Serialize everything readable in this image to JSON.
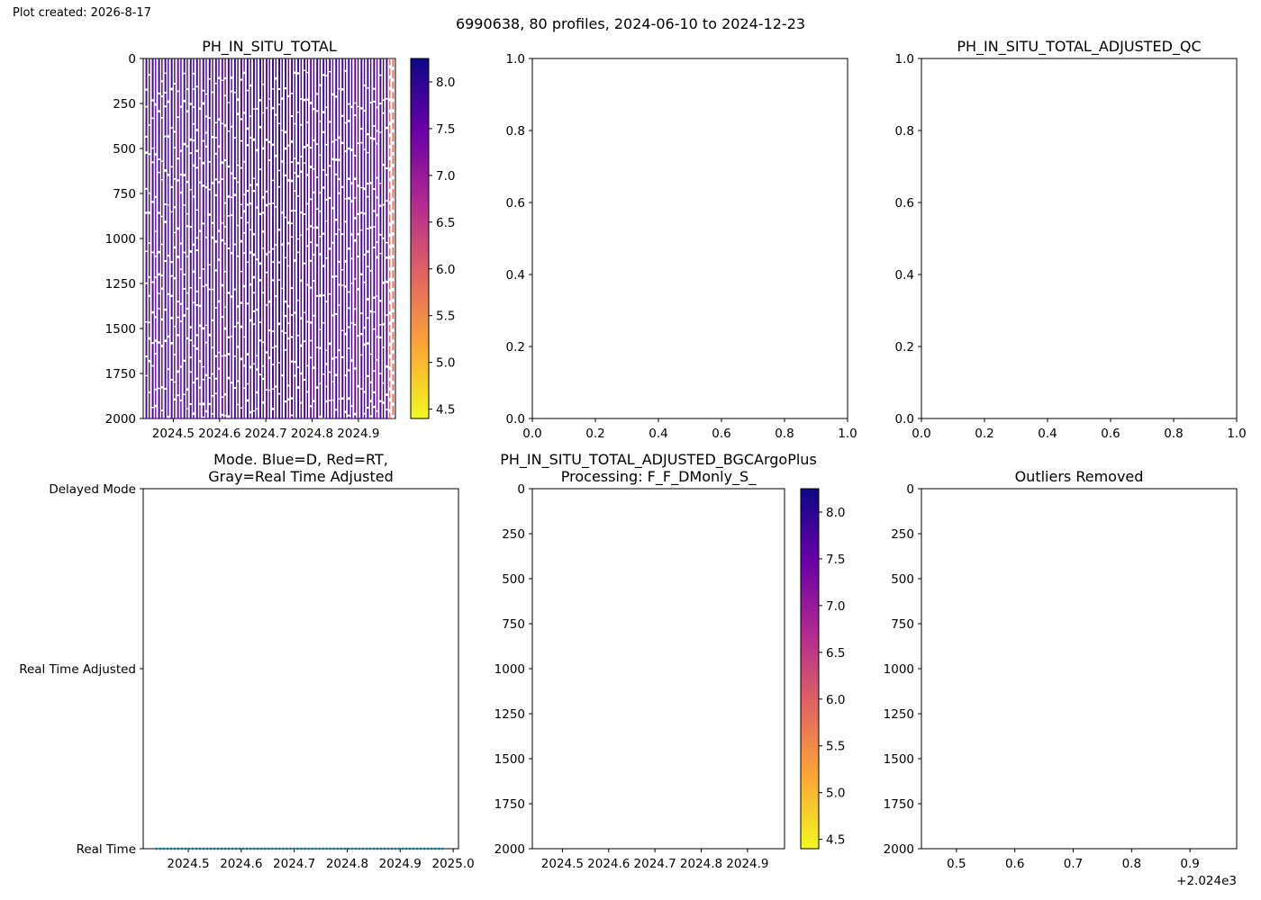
{
  "created_note": "Plot created: 2026-8-17",
  "suptitle": "6990638, 80 profiles, 2024-06-10 to 2024-12-23",
  "colormap": [
    "#f0f921",
    "#fca636",
    "#e16462",
    "#b12a90",
    "#6a00a8",
    "#0d0887"
  ],
  "chart_data": [
    {
      "id": "ph-total",
      "type": "heatmap",
      "title": "PH_IN_SITU_TOTAL",
      "xlim": [
        2024.435,
        2024.98
      ],
      "ylim": [
        2000,
        0
      ],
      "xticks": [
        "2024.5",
        "2024.6",
        "2024.7",
        "2024.8",
        "2024.9"
      ],
      "xtick_values": [
        2024.5,
        2024.6,
        2024.7,
        2024.8,
        2024.9
      ],
      "yticks": [
        "0",
        "250",
        "500",
        "750",
        "1000",
        "1250",
        "1500",
        "1750",
        "2000"
      ],
      "ytick_values": [
        0,
        250,
        500,
        750,
        1000,
        1250,
        1500,
        1750,
        2000
      ],
      "colorbar": {
        "range": [
          4.4,
          8.25
        ],
        "ticks": [
          "4.5",
          "5.0",
          "5.5",
          "6.0",
          "6.5",
          "7.0",
          "7.5",
          "8.0"
        ],
        "tick_values": [
          4.5,
          5.0,
          5.5,
          6.0,
          6.5,
          7.0,
          7.5,
          8.0
        ]
      },
      "profiles": {
        "count": 80,
        "start": 2024.44,
        "end": 2024.98,
        "depth_range": [
          0,
          2000
        ],
        "ph_shallow_typical": 7.85,
        "ph_deep_typical": 7.75,
        "ph_last_profiles": 5.8,
        "last_profiles_count": 3
      }
    },
    {
      "id": "ph-adjusted-qc",
      "type": "scatter",
      "title": "PH_IN_SITU_TOTAL_ADJUSTED_QC",
      "xlim": [
        0,
        1
      ],
      "ylim": [
        0,
        1
      ],
      "xticks": [
        "0.0",
        "0.2",
        "0.4",
        "0.6",
        "0.8",
        "1.0"
      ],
      "xtick_values": [
        0,
        0.2,
        0.4,
        0.6,
        0.8,
        1.0
      ],
      "yticks": [
        "0.0",
        "0.2",
        "0.4",
        "0.6",
        "0.8",
        "1.0"
      ],
      "ytick_values": [
        0,
        0.2,
        0.4,
        0.6,
        0.8,
        1.0
      ],
      "series": []
    },
    {
      "id": "empty-middle",
      "type": "scatter",
      "title": "",
      "xlim": [
        0,
        1
      ],
      "ylim": [
        0,
        1
      ],
      "xticks": [
        "0.0",
        "0.2",
        "0.4",
        "0.6",
        "0.8",
        "1.0"
      ],
      "xtick_values": [
        0,
        0.2,
        0.4,
        0.6,
        0.8,
        1.0
      ],
      "yticks": [
        "0.0",
        "0.2",
        "0.4",
        "0.6",
        "0.8",
        "1.0"
      ],
      "ytick_values": [
        0,
        0.2,
        0.4,
        0.6,
        0.8,
        1.0
      ],
      "series": []
    },
    {
      "id": "mode",
      "type": "scatter",
      "title": "Mode. Blue=D, Red=RT,\nGray=Real Time Adjusted",
      "xlim": [
        2024.415,
        2025.01
      ],
      "ylim": [
        0,
        2
      ],
      "xticks": [
        "2024.5",
        "2024.6",
        "2024.7",
        "2024.8",
        "2024.9",
        "2025.0"
      ],
      "xtick_values": [
        2024.5,
        2024.6,
        2024.7,
        2024.8,
        2024.9,
        2025.0
      ],
      "yticks": [
        "Real Time",
        "Real Time Adjusted",
        "Delayed Mode"
      ],
      "ytick_values": [
        0,
        1,
        2
      ],
      "series": [
        {
          "name": "",
          "color": "#1a7a8c",
          "y": 0,
          "count": 80,
          "x_start": 2024.44,
          "x_end": 2024.98
        }
      ]
    },
    {
      "id": "ph-adjusted-bgc",
      "type": "heatmap",
      "title": "PH_IN_SITU_TOTAL_ADJUSTED_BGCArgoPlus\nProcessing: F_F_DMonly_S_",
      "xlim": [
        2024.435,
        2024.98
      ],
      "ylim": [
        2000,
        0
      ],
      "xticks": [
        "2024.5",
        "2024.6",
        "2024.7",
        "2024.8",
        "2024.9"
      ],
      "xtick_values": [
        2024.5,
        2024.6,
        2024.7,
        2024.8,
        2024.9
      ],
      "yticks": [
        "0",
        "250",
        "500",
        "750",
        "1000",
        "1250",
        "1500",
        "1750",
        "2000"
      ],
      "ytick_values": [
        0,
        250,
        500,
        750,
        1000,
        1250,
        1500,
        1750,
        2000
      ],
      "colorbar": {
        "range": [
          4.4,
          8.25
        ],
        "ticks": [
          "4.5",
          "5.0",
          "5.5",
          "6.0",
          "6.5",
          "7.0",
          "7.5",
          "8.0"
        ],
        "tick_values": [
          4.5,
          5.0,
          5.5,
          6.0,
          6.5,
          7.0,
          7.5,
          8.0
        ]
      },
      "series": []
    },
    {
      "id": "outliers",
      "type": "scatter",
      "title": "Outliers Removed",
      "xlim": [
        0.44,
        0.98
      ],
      "ylim": [
        2000,
        0
      ],
      "xticks": [
        "0.5",
        "0.6",
        "0.7",
        "0.8",
        "0.9"
      ],
      "xtick_values": [
        0.5,
        0.6,
        0.7,
        0.8,
        0.9
      ],
      "yticks": [
        "0",
        "250",
        "500",
        "750",
        "1000",
        "1250",
        "1500",
        "1750",
        "2000"
      ],
      "ytick_values": [
        0,
        250,
        500,
        750,
        1000,
        1250,
        1500,
        1750,
        2000
      ],
      "offset_label": "+2.024e3",
      "series": []
    }
  ]
}
